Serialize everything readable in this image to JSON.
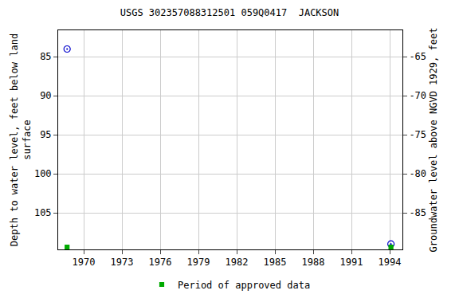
{
  "chart_data": {
    "type": "scatter",
    "title": "USGS 302357088312501 059Q0417  JACKSON",
    "y_label": "Depth to water level, feet below land surface",
    "y2_label": "Groundwater level above NGVD 1929, feet",
    "xlim": [
      1968.0,
      1995.0
    ],
    "xticks": [
      1970,
      1973,
      1976,
      1979,
      1982,
      1985,
      1988,
      1991,
      1994
    ],
    "ylim": [
      81.6,
      109.7
    ],
    "yticks": [
      85,
      90,
      95,
      100,
      105
    ],
    "y2lim": [
      -89.7,
      -61.6
    ],
    "y2ticks": [
      -65,
      -70,
      -75,
      -80,
      -85
    ],
    "grid": true,
    "legend": "bottom",
    "series": [
      {
        "color": "#0000cc",
        "marker": "circle-open-dot",
        "x": [
          1968.7,
          1994.1
        ],
        "values": [
          84.0,
          109.0
        ]
      },
      {
        "name": "Period of approved data",
        "color": "#00aa00",
        "marker": "square",
        "x": [
          1968.7,
          1994.1
        ],
        "values": [
          109.4,
          109.4
        ]
      }
    ]
  }
}
